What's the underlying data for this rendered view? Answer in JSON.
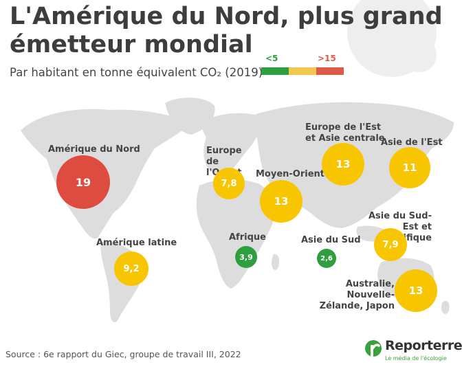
{
  "title_line1": "L'Amérique du Nord, plus grand",
  "title_line2": "émetteur mondial",
  "subtitle": "Par habitant en tonne équivalent CO₂ (2019)",
  "legend": {
    "low_label": "<5",
    "high_label": ">15",
    "colors": {
      "low": "#2e9e3e",
      "mid": "#f2c94c",
      "high": "#e05a4a"
    }
  },
  "bubble_colors": {
    "red": "#de4b3f",
    "yellow": "#f7c600",
    "green": "#2e9e3e"
  },
  "regions": [
    {
      "name": "Amérique du Nord",
      "value": "19",
      "color": "red"
    },
    {
      "name": "Europe de l'Ouest",
      "value": "7,8",
      "color": "yellow"
    },
    {
      "name": "Moyen-Orient",
      "value": "13",
      "color": "yellow"
    },
    {
      "name": "Europe de l'Est et Asie centrale",
      "value": "13",
      "color": "yellow"
    },
    {
      "name": "Asie de l'Est",
      "value": "11",
      "color": "yellow"
    },
    {
      "name": "Amérique latine",
      "value": "9,2",
      "color": "yellow"
    },
    {
      "name": "Afrique",
      "value": "3,9",
      "color": "green"
    },
    {
      "name": "Asie du Sud",
      "value": "2,6",
      "color": "green"
    },
    {
      "name": "Asie du Sud-Est et Pacifique",
      "value": "7,9",
      "color": "yellow"
    },
    {
      "name": "Australie, Nouvelle-Zélande, Japon",
      "value": "13",
      "color": "yellow"
    }
  ],
  "source": "Source : 6e rapport du Giec, groupe de travail III, 2022",
  "brand": {
    "name": "Reporterre",
    "tagline": "Le média de l'écologie",
    "color": "#38a338"
  }
}
